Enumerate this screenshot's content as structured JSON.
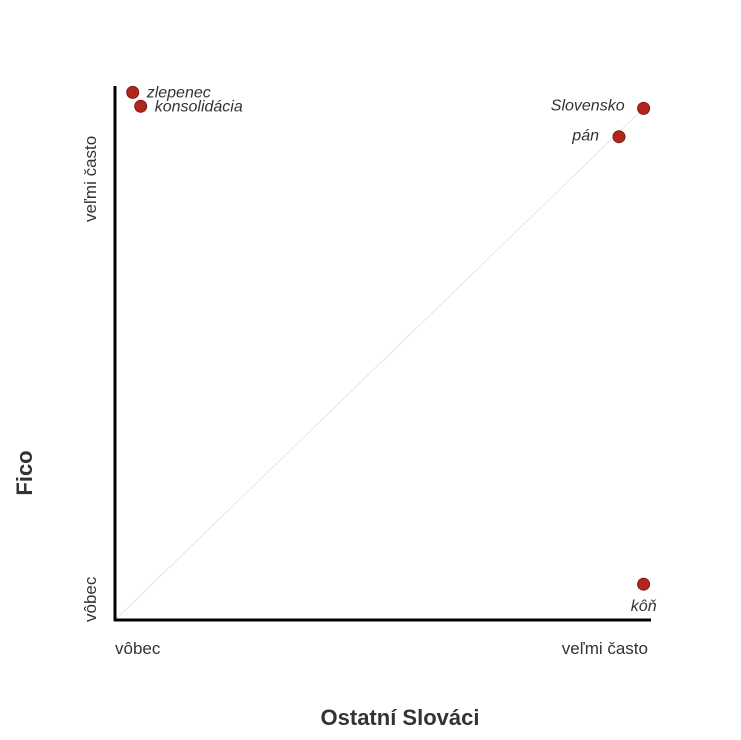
{
  "chart_data": {
    "type": "scatter",
    "xlabel": "Ostatní Slováci",
    "ylabel": "Fico",
    "xlim": [
      0,
      1
    ],
    "ylim": [
      0,
      1
    ],
    "x_tick_labels": [
      "vôbec",
      "veľmi často"
    ],
    "y_tick_labels": [
      "vôbec",
      "veľmi často"
    ],
    "diagonal_reference_line": true,
    "grid": false,
    "point_color": "#b3261e",
    "diagonal_color": "#e6e6e6",
    "points": [
      {
        "label": "zlepenec",
        "x": 0.033,
        "y": 0.988
      },
      {
        "label": "konsolidácia",
        "x": 0.048,
        "y": 0.962
      },
      {
        "label": "Slovensko",
        "x": 0.988,
        "y": 0.958
      },
      {
        "label": "pán",
        "x": 0.942,
        "y": 0.905
      },
      {
        "label": "kôň",
        "x": 0.988,
        "y": 0.067
      }
    ]
  }
}
